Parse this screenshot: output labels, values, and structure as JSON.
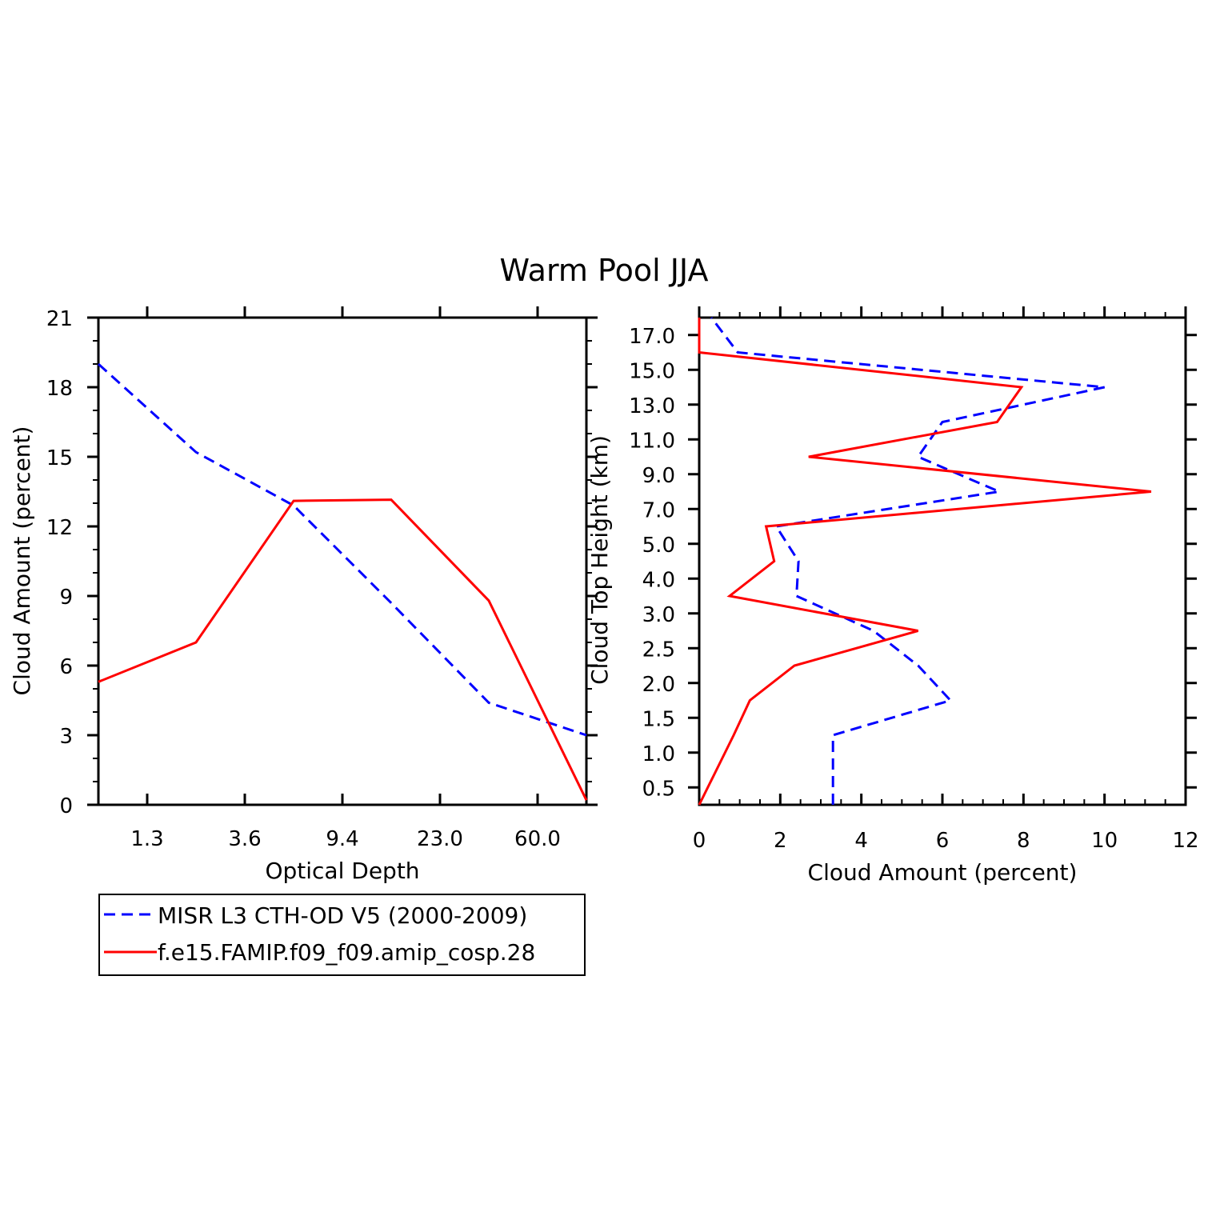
{
  "title": "Warm Pool JJA",
  "colors": {
    "obs": "#0000ff",
    "model": "#ff0000",
    "axis": "#000000"
  },
  "legend": {
    "entries": [
      {
        "label": "MISR L3 CTH-OD V5 (2000-2009)",
        "style": "dashed",
        "color": "#0000ff"
      },
      {
        "label": "f.e15.FAMIP.f09_f09.amip_cosp.28",
        "style": "solid",
        "color": "#ff0000"
      }
    ]
  },
  "chart_data": [
    {
      "type": "line",
      "xlabel": "Optical Depth",
      "ylabel": "Cloud Amount (percent)",
      "x_tick_labels": [
        "1.3",
        "3.6",
        "9.4",
        "23.0",
        "60.0"
      ],
      "x_bins": [
        0,
        1,
        2,
        3,
        4,
        5
      ],
      "ylim": [
        0,
        21
      ],
      "y_ticks": [
        0,
        3,
        6,
        9,
        12,
        15,
        18,
        21
      ],
      "series": [
        {
          "name": "MISR L3 CTH-OD V5 (2000-2009)",
          "style": "dashed",
          "color": "#0000ff",
          "values": [
            19.0,
            15.2,
            12.9,
            8.7,
            4.4,
            3.0
          ]
        },
        {
          "name": "f.e15.FAMIP.f09_f09.amip_cosp.28",
          "style": "solid",
          "color": "#ff0000",
          "values": [
            5.3,
            7.0,
            13.1,
            13.15,
            8.8,
            0.2
          ]
        }
      ]
    },
    {
      "type": "line",
      "xlabel": "Cloud Amount (percent)",
      "ylabel": "Cloud Top Height (km)",
      "xlim": [
        0,
        12
      ],
      "x_ticks": [
        0,
        2,
        4,
        6,
        8,
        10,
        12
      ],
      "y_tick_labels": [
        "0.5",
        "1.0",
        "1.5",
        "2.0",
        "2.5",
        "3.0",
        "4.0",
        "5.0",
        "7.0",
        "9.0",
        "11.0",
        "13.0",
        "15.0",
        "17.0"
      ],
      "series": [
        {
          "name": "MISR L3 CTH-OD V5 (2000-2009)",
          "style": "dashed",
          "color": "#0000ff",
          "points": [
            {
              "x": 3.3,
              "y": 0.0
            },
            {
              "x": 3.3,
              "y": 0.5
            },
            {
              "x": 3.3,
              "y": 1.0
            },
            {
              "x": 6.2,
              "y": 1.5
            },
            {
              "x": 5.4,
              "y": 2.0
            },
            {
              "x": 4.3,
              "y": 2.5
            },
            {
              "x": 2.4,
              "y": 3.0
            },
            {
              "x": 2.45,
              "y": 4.0
            },
            {
              "x": 1.9,
              "y": 5.0
            },
            {
              "x": 7.4,
              "y": 7.0
            },
            {
              "x": 5.4,
              "y": 9.0
            },
            {
              "x": 6.0,
              "y": 11.0
            },
            {
              "x": 10.0,
              "y": 13.0
            },
            {
              "x": 0.95,
              "y": 15.0
            },
            {
              "x": 0.3,
              "y": 17.0
            }
          ]
        },
        {
          "name": "f.e15.FAMIP.f09_f09.amip_cosp.28",
          "style": "solid",
          "color": "#ff0000",
          "points": [
            {
              "x": 0.0,
              "y": 0.0
            },
            {
              "x": 0.85,
              "y": 1.0
            },
            {
              "x": 1.25,
              "y": 1.5
            },
            {
              "x": 2.35,
              "y": 2.0
            },
            {
              "x": 5.4,
              "y": 2.5
            },
            {
              "x": 0.75,
              "y": 3.0
            },
            {
              "x": 1.85,
              "y": 4.0
            },
            {
              "x": 1.65,
              "y": 5.0
            },
            {
              "x": 11.15,
              "y": 7.0
            },
            {
              "x": 2.7,
              "y": 9.0
            },
            {
              "x": 7.35,
              "y": 11.0
            },
            {
              "x": 7.95,
              "y": 13.0
            },
            {
              "x": 0.0,
              "y": 15.0
            },
            {
              "x": 0.0,
              "y": 17.0
            }
          ]
        }
      ]
    }
  ]
}
